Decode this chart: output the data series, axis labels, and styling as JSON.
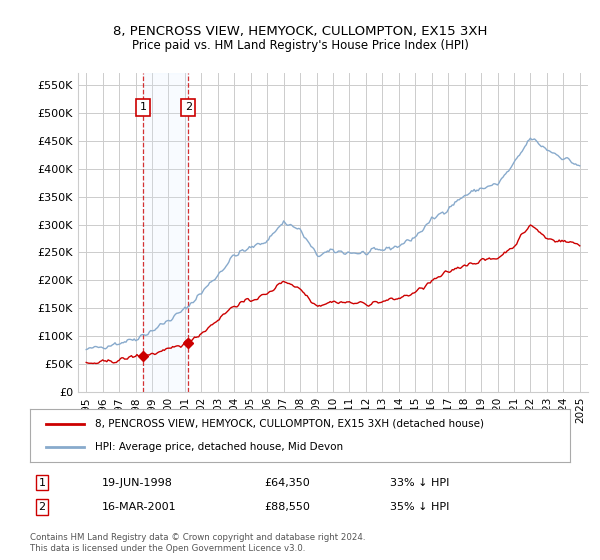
{
  "title": "8, PENCROSS VIEW, HEMYOCK, CULLOMPTON, EX15 3XH",
  "subtitle": "Price paid vs. HM Land Registry's House Price Index (HPI)",
  "yticks": [
    0,
    50000,
    100000,
    150000,
    200000,
    250000,
    300000,
    350000,
    400000,
    450000,
    500000,
    550000
  ],
  "ytick_labels": [
    "£0",
    "£50K",
    "£100K",
    "£150K",
    "£200K",
    "£250K",
    "£300K",
    "£350K",
    "£400K",
    "£450K",
    "£500K",
    "£550K"
  ],
  "xlim_start": 1994.5,
  "xlim_end": 2025.5,
  "ylim_min": 0,
  "ylim_max": 572000,
  "sale1_year": 1998.46,
  "sale1_price": 64350,
  "sale1_label": "1",
  "sale2_year": 2001.21,
  "sale2_price": 88550,
  "sale2_label": "2",
  "sale1_date": "19-JUN-1998",
  "sale1_amount": "£64,350",
  "sale1_pct": "33% ↓ HPI",
  "sale2_date": "16-MAR-2001",
  "sale2_amount": "£88,550",
  "sale2_pct": "35% ↓ HPI",
  "legend_property": "8, PENCROSS VIEW, HEMYOCK, CULLOMPTON, EX15 3XH (detached house)",
  "legend_hpi": "HPI: Average price, detached house, Mid Devon",
  "footnote": "Contains HM Land Registry data © Crown copyright and database right 2024.\nThis data is licensed under the Open Government Licence v3.0.",
  "property_color": "#cc0000",
  "hpi_color": "#88aacc",
  "shade_color": "#ddeeff",
  "grid_color": "#cccccc",
  "background_color": "#ffffff",
  "hpi_key_years": [
    1995,
    1996,
    1997,
    1998,
    1999,
    2000,
    2001,
    2002,
    2003,
    2004,
    2005,
    2006,
    2007,
    2008,
    2009,
    2010,
    2011,
    2012,
    2013,
    2014,
    2015,
    2016,
    2017,
    2018,
    2019,
    2020,
    2021,
    2022,
    2023,
    2024,
    2025
  ],
  "hpi_key_values": [
    75000,
    82000,
    88000,
    96000,
    110000,
    128000,
    148000,
    178000,
    210000,
    245000,
    258000,
    272000,
    305000,
    290000,
    245000,
    252000,
    250000,
    248000,
    255000,
    262000,
    278000,
    308000,
    330000,
    352000,
    365000,
    372000,
    408000,
    455000,
    435000,
    420000,
    405000
  ],
  "prop_key_years": [
    1995,
    1996,
    1997,
    1998,
    1999,
    2000,
    2001,
    2002,
    2003,
    2004,
    2005,
    2006,
    2007,
    2008,
    2009,
    2010,
    2011,
    2012,
    2013,
    2014,
    2015,
    2016,
    2017,
    2018,
    2019,
    2020,
    2021,
    2022,
    2023,
    2024,
    2025
  ],
  "prop_key_values": [
    50000,
    53000,
    57000,
    64350,
    68000,
    75000,
    88550,
    105000,
    130000,
    155000,
    165000,
    175000,
    200000,
    185000,
    155000,
    162000,
    160000,
    158000,
    162000,
    168000,
    178000,
    198000,
    215000,
    228000,
    235000,
    240000,
    262000,
    300000,
    275000,
    270000,
    265000
  ]
}
